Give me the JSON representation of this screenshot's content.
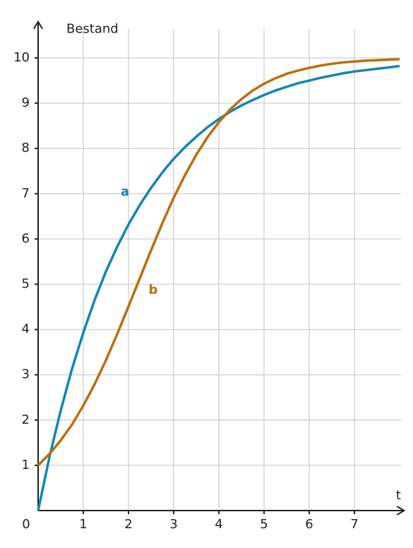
{
  "chart_data": {
    "type": "line",
    "y_label": "Bestand",
    "x_label": "t",
    "x": [
      0,
      0.25,
      0.5,
      0.75,
      1,
      1.25,
      1.5,
      1.75,
      2,
      2.25,
      2.5,
      2.75,
      3,
      3.25,
      3.5,
      3.75,
      4,
      4.25,
      4.5,
      4.75,
      5,
      5.25,
      5.5,
      5.75,
      6,
      6.25,
      6.5,
      6.75,
      7,
      7.25,
      7.5,
      7.75,
      8
    ],
    "series": [
      {
        "name": "a",
        "color": "#1185b6",
        "values": [
          0,
          1.18,
          2.21,
          3.13,
          3.93,
          4.65,
          5.28,
          5.83,
          6.32,
          6.75,
          7.13,
          7.47,
          7.77,
          8.03,
          8.26,
          8.47,
          8.65,
          8.81,
          8.95,
          9.07,
          9.18,
          9.28,
          9.36,
          9.44,
          9.5,
          9.56,
          9.61,
          9.66,
          9.7,
          9.73,
          9.76,
          9.79,
          9.82
        ]
      },
      {
        "name": "b",
        "color": "#bf6c0c",
        "values": [
          1,
          1.25,
          1.55,
          1.9,
          2.32,
          2.79,
          3.32,
          3.9,
          4.51,
          5.13,
          5.75,
          6.35,
          6.91,
          7.41,
          7.86,
          8.25,
          8.58,
          8.86,
          9.09,
          9.28,
          9.43,
          9.55,
          9.65,
          9.72,
          9.78,
          9.83,
          9.87,
          9.9,
          9.92,
          9.94,
          9.95,
          9.96,
          9.97
        ]
      }
    ],
    "xlim": [
      0,
      8.1
    ],
    "ylim": [
      0,
      10.8
    ],
    "xticks": [
      0,
      1,
      2,
      3,
      4,
      5,
      6,
      7
    ],
    "yticks": [
      1,
      2,
      3,
      4,
      5,
      6,
      7,
      8,
      9,
      10
    ],
    "grid": true
  }
}
